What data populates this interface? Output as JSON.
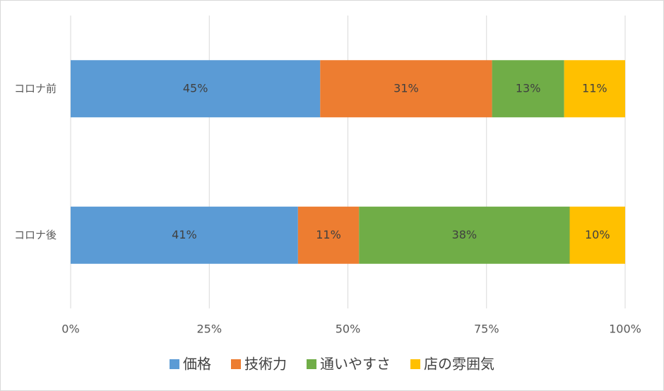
{
  "chart_data": {
    "type": "stacked-bar-horizontal",
    "categories": [
      "コロナ前",
      "コロナ後"
    ],
    "series": [
      {
        "name": "価格",
        "color": "#5b9bd5",
        "values": [
          45,
          41
        ],
        "value_labels": [
          "45%",
          "41%"
        ]
      },
      {
        "name": "技術力",
        "color": "#ed7d31",
        "values": [
          31,
          11
        ],
        "value_labels": [
          "31%",
          "11%"
        ]
      },
      {
        "name": "通いやすさ",
        "color": "#70ad47",
        "values": [
          13,
          38
        ],
        "value_labels": [
          "13%",
          "38%"
        ]
      },
      {
        "name": "店の雰囲気",
        "color": "#ffc000",
        "values": [
          11,
          10
        ],
        "value_labels": [
          "11%",
          "10%"
        ]
      }
    ],
    "xlim": [
      0,
      100
    ],
    "xticks": [
      {
        "value": 0,
        "label": "0%"
      },
      {
        "value": 25,
        "label": "25%"
      },
      {
        "value": 50,
        "label": "50%"
      },
      {
        "value": 75,
        "label": "75%"
      },
      {
        "value": 100,
        "label": "100%"
      }
    ],
    "grid": true,
    "legend": "bottom"
  }
}
